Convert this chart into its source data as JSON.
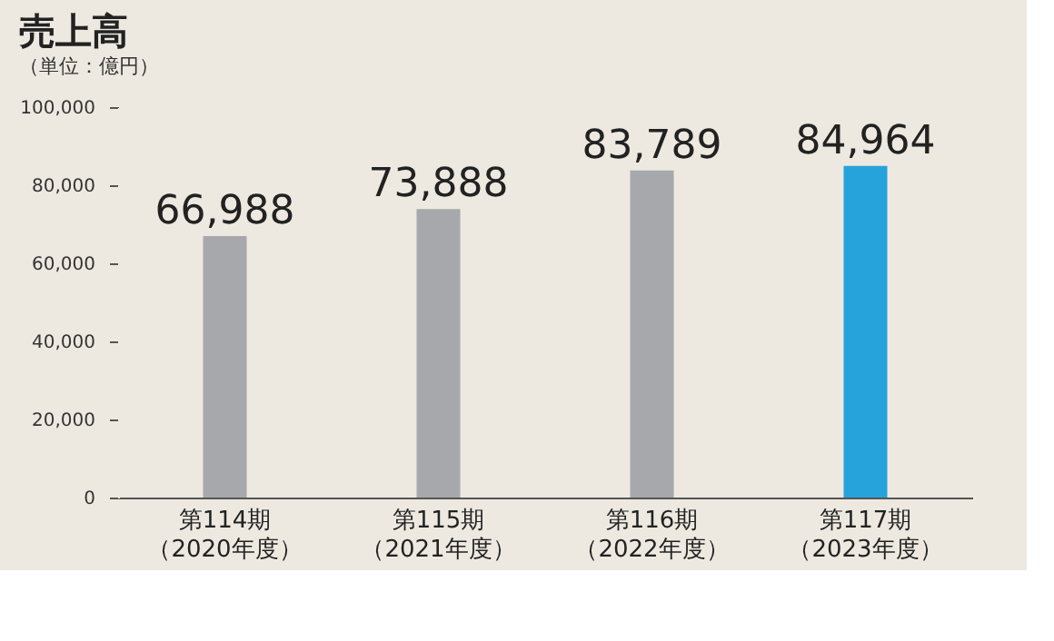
{
  "chart_data": {
    "type": "bar",
    "title": "売上高",
    "subtitle": "（単位：億円）",
    "categories": [
      "第114期（2020年度）",
      "第115期（2021年度）",
      "第116期（2022年度）",
      "第117期（2023年度）"
    ],
    "values": [
      66988,
      73888,
      83789,
      84964
    ],
    "value_labels": [
      "66,988",
      "73,888",
      "83,789",
      "84,964"
    ],
    "colors": [
      "#a7a8ab",
      "#a7a8ab",
      "#a7a8ab",
      "#27a3dc"
    ],
    "ylim": [
      0,
      100000
    ],
    "yticks": [
      0,
      {
        "value": 20000,
        "label": "20,000"
      },
      {
        "value": 40000,
        "label": "40,000"
      },
      {
        "value": 60000,
        "label": "60,000"
      },
      {
        "value": 80000,
        "label": "80,000"
      },
      {
        "value": 100000,
        "label": "100,000"
      }
    ],
    "grid": false
  }
}
